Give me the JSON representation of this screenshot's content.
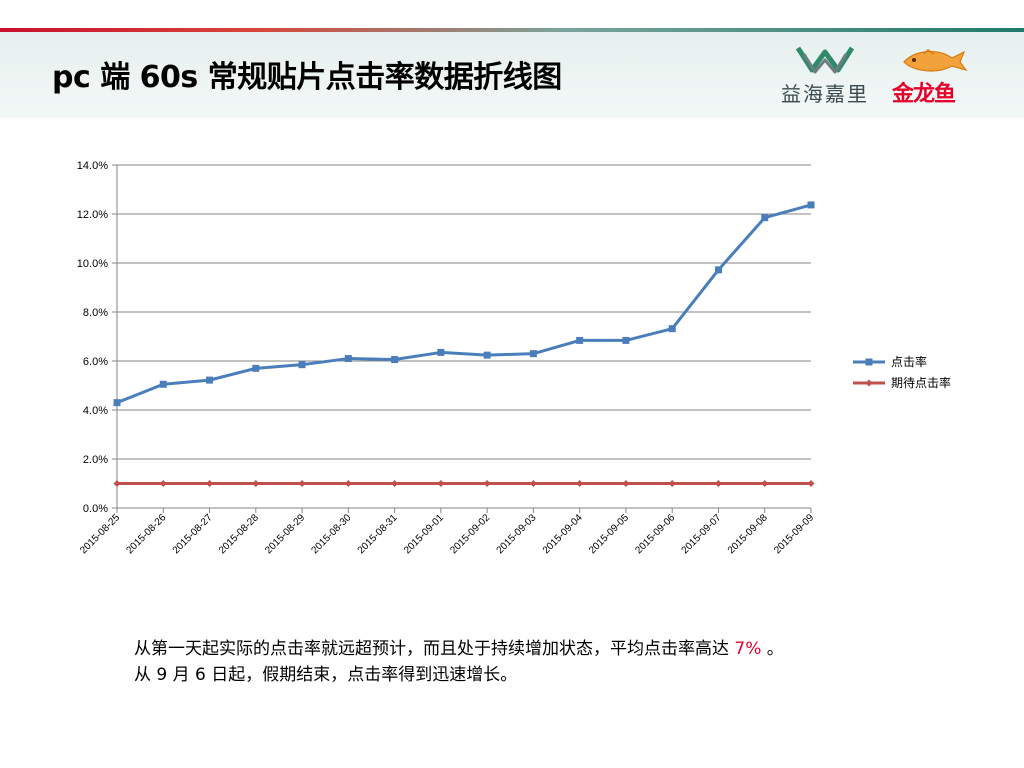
{
  "page": {
    "title": "pc 端 60s 常规贴片点击率数据折线图",
    "logos": {
      "yhjl": {
        "label": "益海嘉里",
        "icon": "yhjl-logo-mark"
      },
      "jly": {
        "label": "金龙鱼",
        "icon": "golden-fish-icon"
      }
    },
    "caption": {
      "line1_before": "从第一天起实际的点击率就远超预计，而且处于持续增加状态，平均点击率高达 ",
      "line1_highlight": "7%",
      "line1_after": " 。",
      "line2": "从 9 月 6 日起，假期结束，点击率得到迅速增长。"
    },
    "colors": {
      "highlight": "#e4002b",
      "series_blue": "#4a7ebb",
      "series_red": "#c0504d"
    }
  },
  "chart_data": {
    "type": "line",
    "title": "",
    "xlabel": "",
    "ylabel": "",
    "categories": [
      "2015-08-25",
      "2015-08-26",
      "2015-08-27",
      "2015-08-28",
      "2015-08-29",
      "2015-08-30",
      "2015-08-31",
      "2015-09-01",
      "2015-09-02",
      "2015-09-03",
      "2015-09-04",
      "2015-09-05",
      "2015-09-06",
      "2015-09-07",
      "2015-09-08",
      "2015-09-09"
    ],
    "y_ticks": [
      "0.0%",
      "2.0%",
      "4.0%",
      "6.0%",
      "8.0%",
      "10.0%",
      "12.0%",
      "14.0%"
    ],
    "ylim": [
      0,
      14
    ],
    "grid": true,
    "legend_position": "right",
    "series": [
      {
        "name": "点击率",
        "color": "#4a7ebb",
        "marker": "square",
        "values": [
          4.3,
          5.05,
          5.22,
          5.7,
          5.85,
          6.1,
          6.06,
          6.35,
          6.24,
          6.3,
          6.84,
          6.84,
          7.32,
          9.72,
          11.85,
          12.37
        ]
      },
      {
        "name": "期待点击率",
        "color": "#c0504d",
        "marker": "diamond",
        "values": [
          1.0,
          1.0,
          1.0,
          1.0,
          1.0,
          1.0,
          1.0,
          1.0,
          1.0,
          1.0,
          1.0,
          1.0,
          1.0,
          1.0,
          1.0,
          1.0
        ]
      }
    ]
  }
}
